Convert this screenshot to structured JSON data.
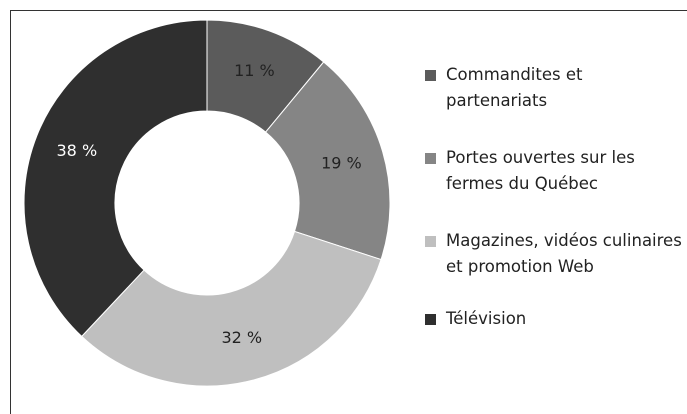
{
  "chart_data": {
    "type": "donut",
    "categories": [
      "Commandites et partenariats",
      "Portes ouvertes sur les fermes du Québec",
      "Magazines, vidéos culinaires et promotion Web",
      "Télévision"
    ],
    "values": [
      11,
      19,
      32,
      38
    ],
    "value_labels": [
      "11 %",
      "19 %",
      "32 %",
      "38 %"
    ],
    "colors": [
      "#5b5b5b",
      "#858585",
      "#bfbfbf",
      "#2f2f2f"
    ],
    "legend": "right"
  }
}
